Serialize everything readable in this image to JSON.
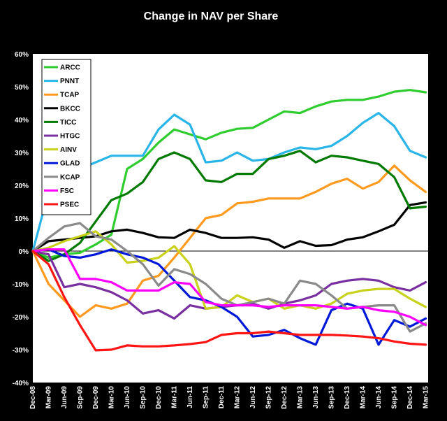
{
  "chart_data": {
    "type": "line",
    "title": "Change in NAV per Share",
    "xlabel": "",
    "ylabel": "",
    "ylim": [
      -40,
      60
    ],
    "y_ticks": [
      "60%",
      "50%",
      "40%",
      "30%",
      "20%",
      "10%",
      "0%",
      "-10%",
      "-20%",
      "-30%",
      "-40%"
    ],
    "x_tick_labels": [
      "Dec-08",
      "Mar-09",
      "Jun-09",
      "Sep-09",
      "Dec-09",
      "Mar-10",
      "Jun-10",
      "Sep-10",
      "Dec-10",
      "Mar-11",
      "Jun-11",
      "Sep-11",
      "Dec-11",
      "Mar-12",
      "Jun-12",
      "Sep-12",
      "Dec-12",
      "Mar-13",
      "Jun-13",
      "Sep-13",
      "Dec-13",
      "Mar-14",
      "Jun-14",
      "Sep-14",
      "Dec-14",
      "Mar-15"
    ],
    "x": [
      "Dec-08",
      "Mar-09",
      "Jun-09",
      "Sep-09",
      "Dec-09",
      "Mar-10",
      "Jun-10",
      "Sep-10",
      "Dec-10",
      "Mar-11",
      "Jun-11",
      "Sep-11",
      "Dec-11",
      "Mar-12",
      "Jun-12",
      "Sep-12",
      "Dec-12",
      "Mar-13",
      "Jun-13",
      "Sep-13",
      "Dec-13",
      "Mar-14",
      "Jun-14",
      "Sep-14",
      "Dec-14",
      "Mar-15"
    ],
    "grid": false,
    "legend_position": "top-left",
    "plot_background": "#ffffff",
    "page_background": "#000000",
    "series": [
      {
        "name": "ARCC",
        "color": "#2ecc2e",
        "values": [
          0,
          -2,
          -1,
          -0.5,
          2,
          5,
          25,
          28,
          33,
          37,
          35.5,
          34,
          36,
          37.2,
          37.5,
          40,
          42.5,
          42,
          44,
          45.5,
          46,
          46,
          47,
          48.5,
          49,
          48.3
        ]
      },
      {
        "name": "PNNT",
        "color": "#2ab5e8",
        "values": [
          0,
          18,
          null,
          25,
          27,
          29,
          29,
          29,
          37,
          41.5,
          38.5,
          27,
          27.5,
          30,
          27.5,
          28,
          30,
          31.5,
          31,
          32,
          35,
          39,
          42,
          38,
          30.5,
          28.5
        ]
      },
      {
        "name": "TCAP",
        "color": "#ff9a1f",
        "values": [
          0,
          -10,
          -15,
          -20,
          -16.5,
          -17.5,
          -16,
          -9,
          -7.5,
          -2,
          4,
          10,
          11,
          14.5,
          15,
          16,
          16,
          16,
          18,
          20.5,
          22,
          19,
          21,
          26,
          21.5,
          18
        ]
      },
      {
        "name": "BKCC",
        "color": "#000000",
        "values": [
          0,
          3,
          3.5,
          4,
          4.5,
          6,
          6.5,
          5.5,
          4.2,
          4,
          6.5,
          5.5,
          4,
          4,
          4.2,
          3.5,
          1,
          3,
          1.6,
          1.8,
          3.5,
          4.2,
          6,
          8,
          14,
          14.8
        ]
      },
      {
        "name": "TICC",
        "color": "#007a00",
        "values": [
          0,
          -3,
          -1,
          2.5,
          9,
          15.5,
          17.5,
          21,
          28,
          30,
          28,
          21.5,
          21,
          23.5,
          23.5,
          28,
          29,
          30.5,
          27,
          29,
          28.5,
          27.5,
          26.5,
          22.5,
          13,
          13.5
        ]
      },
      {
        "name": "HTGC",
        "color": "#7a2fa0",
        "values": [
          0,
          -1,
          -11,
          -10,
          -11,
          -12.5,
          -15,
          -19,
          -18,
          -20.5,
          -16.5,
          -17.5,
          -17,
          -16.5,
          -16,
          -17.5,
          -16,
          -15,
          -13.5,
          -10,
          -9,
          -8.5,
          -9,
          -11,
          -12,
          -9.5
        ]
      },
      {
        "name": "AINV",
        "color": "#c8d21a",
        "values": [
          0,
          1,
          3,
          4.5,
          6,
          2,
          -3.5,
          -3,
          -2,
          1.5,
          -4,
          -17.5,
          -17,
          -13.5,
          -15.5,
          -14.5,
          -17.5,
          -16.5,
          -17.5,
          -16,
          -13,
          -12,
          -11.5,
          -11.5,
          -14.5,
          -17
        ]
      },
      {
        "name": "GLAD",
        "color": "#0018d8",
        "values": [
          0,
          0.5,
          -1.5,
          -2,
          -1,
          0.5,
          -1,
          -2,
          -4,
          -9,
          -14,
          -15,
          -17,
          -20,
          -26,
          -25.5,
          -24,
          -26.5,
          -28.5,
          -18,
          -16,
          -17.5,
          -28.5,
          -21,
          -23,
          -20.5
        ]
      },
      {
        "name": "KCAP",
        "color": "#8a8a8a",
        "values": [
          0,
          4,
          7.5,
          8.5,
          4.5,
          3.5,
          0,
          -4,
          -10.5,
          -5.5,
          -7,
          -10,
          -14.5,
          -16.5,
          -15.5,
          -14.5,
          -16,
          -9,
          -10,
          -13.5,
          -17.5,
          -17,
          -16.5,
          -16.5,
          -24.5,
          -22
        ]
      },
      {
        "name": "FSC",
        "color": "#ff00ff",
        "values": [
          0,
          0.5,
          0.5,
          -8.5,
          -8.5,
          -9.5,
          -12,
          -12,
          -12,
          -9.5,
          -10,
          -15.5,
          -16.5,
          -16.5,
          -16.5,
          -17,
          -16.5,
          -16.5,
          -16.5,
          -17,
          -17.5,
          -17,
          -18,
          -18.5,
          -20,
          -22.5
        ]
      },
      {
        "name": "PSEC",
        "color": "#ff1414",
        "values": [
          0,
          -4,
          -14,
          -22.5,
          -30.2,
          -30,
          -28.7,
          -29,
          -29,
          -28.7,
          -28.3,
          -27.7,
          -25.5,
          -25,
          -25,
          -24.5,
          -25,
          -25.5,
          -25.5,
          -25.5,
          -25.7,
          -26,
          -26.5,
          -27.5,
          -28.2,
          -28.5
        ]
      }
    ]
  }
}
